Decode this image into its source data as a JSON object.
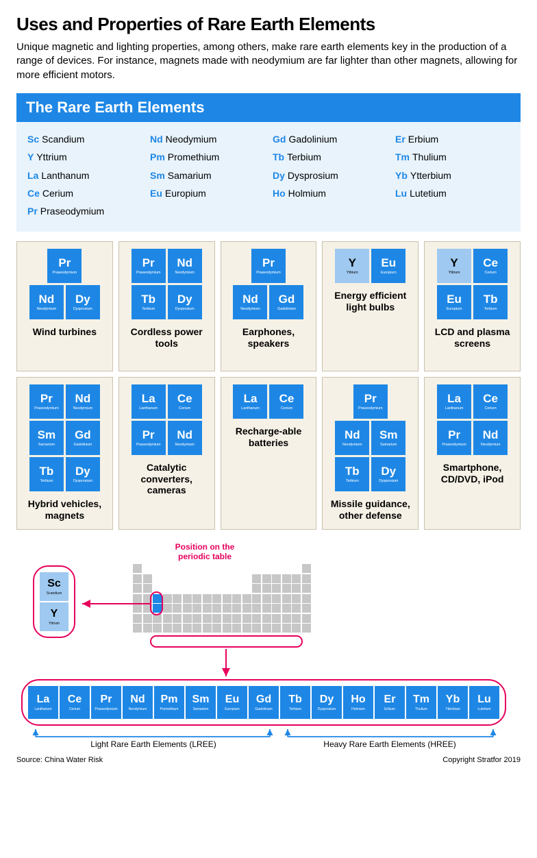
{
  "title": "Uses and Properties of Rare Earth Elements",
  "subtitle": "Unique magnetic and lighting properties, among others, make rare earth elements key in the production of a range of devices. For instance, magnets made with neodymium are far lighter than other magnets, allowing for more efficient motors.",
  "panel_header": "The Rare Earth Elements",
  "colors": {
    "primary": "#1e87e5",
    "light": "#9fc9f0",
    "card_bg": "#f6f1e6",
    "highlight": "#e6005c",
    "grid": "#c7c7c7"
  },
  "elements": [
    {
      "sym": "Sc",
      "name": "Scandium"
    },
    {
      "sym": "Y",
      "name": "Yttrium"
    },
    {
      "sym": "La",
      "name": "Lanthanum"
    },
    {
      "sym": "Ce",
      "name": "Cerium"
    },
    {
      "sym": "Pr",
      "name": "Praseodymium"
    },
    {
      "sym": "Nd",
      "name": "Neodymium"
    },
    {
      "sym": "Pm",
      "name": "Promethium"
    },
    {
      "sym": "Sm",
      "name": "Samarium"
    },
    {
      "sym": "Eu",
      "name": "Europium"
    },
    {
      "sym": "Gd",
      "name": "Gadolinium"
    },
    {
      "sym": "Tb",
      "name": "Terbium"
    },
    {
      "sym": "Dy",
      "name": "Dysprosium"
    },
    {
      "sym": "Ho",
      "name": "Holmium"
    },
    {
      "sym": "Er",
      "name": "Erbium"
    },
    {
      "sym": "Tm",
      "name": "Thulium"
    },
    {
      "sym": "Yb",
      "name": "Ytterbium"
    },
    {
      "sym": "Lu",
      "name": "Lutetium"
    }
  ],
  "list_layout": [
    [
      "Sc",
      "Nd",
      "Gd",
      "Er"
    ],
    [
      "Y",
      "Pm",
      "Tb",
      "Tm"
    ],
    [
      "La",
      "Sm",
      "Dy",
      "Yb"
    ],
    [
      "Ce",
      "Eu",
      "Ho",
      "Lu"
    ],
    [
      "Pr",
      "",
      "",
      ""
    ]
  ],
  "cards": [
    {
      "label": "Wind turbines",
      "cols": 2,
      "tiles": [
        {
          "sym": "Pr",
          "name": "Praseodymium",
          "c": "primary",
          "span": true
        },
        {
          "sym": "Nd",
          "name": "Neodymium",
          "c": "primary"
        },
        {
          "sym": "Dy",
          "name": "Dysprosium",
          "c": "primary"
        }
      ]
    },
    {
      "label": "Cordless power tools",
      "cols": 2,
      "tiles": [
        {
          "sym": "Pr",
          "name": "Praseodymium",
          "c": "primary"
        },
        {
          "sym": "Nd",
          "name": "Neodymium",
          "c": "primary"
        },
        {
          "sym": "Tb",
          "name": "Terbium",
          "c": "primary"
        },
        {
          "sym": "Dy",
          "name": "Dysprosium",
          "c": "primary"
        }
      ]
    },
    {
      "label": "Earphones, speakers",
      "cols": 2,
      "tiles": [
        {
          "sym": "Pr",
          "name": "Praseodymium",
          "c": "primary",
          "span": true
        },
        {
          "sym": "Nd",
          "name": "Neodymium",
          "c": "primary"
        },
        {
          "sym": "Gd",
          "name": "Gadolinium",
          "c": "primary"
        }
      ]
    },
    {
      "label": "Energy efficient light bulbs",
      "cols": 2,
      "tiles": [
        {
          "sym": "Y",
          "name": "Yttrium",
          "c": "light",
          "text": "#000"
        },
        {
          "sym": "Eu",
          "name": "Europium",
          "c": "primary"
        }
      ]
    },
    {
      "label": "LCD and plasma screens",
      "cols": 2,
      "tiles": [
        {
          "sym": "Y",
          "name": "Yttrium",
          "c": "light",
          "text": "#000"
        },
        {
          "sym": "Ce",
          "name": "Cerium",
          "c": "primary"
        },
        {
          "sym": "Eu",
          "name": "Europium",
          "c": "primary"
        },
        {
          "sym": "Tb",
          "name": "Terbium",
          "c": "primary"
        }
      ]
    },
    {
      "label": "Hybrid vehicles, magnets",
      "cols": 2,
      "tiles": [
        {
          "sym": "Pr",
          "name": "Praseodymium",
          "c": "primary"
        },
        {
          "sym": "Nd",
          "name": "Neodymium",
          "c": "primary"
        },
        {
          "sym": "Sm",
          "name": "Samarium",
          "c": "primary"
        },
        {
          "sym": "Gd",
          "name": "Gadolinium",
          "c": "primary"
        },
        {
          "sym": "Tb",
          "name": "Terbium",
          "c": "primary"
        },
        {
          "sym": "Dy",
          "name": "Dysprosium",
          "c": "primary"
        }
      ]
    },
    {
      "label": "Catalytic converters, cameras",
      "cols": 2,
      "tiles": [
        {
          "sym": "La",
          "name": "Lanthanum",
          "c": "primary"
        },
        {
          "sym": "Ce",
          "name": "Cerium",
          "c": "primary"
        },
        {
          "sym": "Pr",
          "name": "Praseodymium",
          "c": "primary"
        },
        {
          "sym": "Nd",
          "name": "Neodymium",
          "c": "primary"
        }
      ]
    },
    {
      "label": "Recharge-able batteries",
      "cols": 2,
      "tiles": [
        {
          "sym": "La",
          "name": "Lanthanum",
          "c": "primary"
        },
        {
          "sym": "Ce",
          "name": "Cerium",
          "c": "primary"
        }
      ]
    },
    {
      "label": "Missile guidance, other defense",
      "cols": 2,
      "tiles": [
        {
          "sym": "Pr",
          "name": "Praseodymium",
          "c": "primary",
          "span": true
        },
        {
          "sym": "Nd",
          "name": "Neodymium",
          "c": "primary"
        },
        {
          "sym": "Sm",
          "name": "Samarium",
          "c": "primary"
        },
        {
          "sym": "Tb",
          "name": "Terbium",
          "c": "primary"
        },
        {
          "sym": "Dy",
          "name": "Dysprosium",
          "c": "primary"
        }
      ]
    },
    {
      "label": "Smartphone, CD/DVD, iPod",
      "cols": 2,
      "tiles": [
        {
          "sym": "La",
          "name": "Lanthanum",
          "c": "primary"
        },
        {
          "sym": "Ce",
          "name": "Cerium",
          "c": "primary"
        },
        {
          "sym": "Pr",
          "name": "Praseodymium",
          "c": "primary"
        },
        {
          "sym": "Nd",
          "name": "Neodymium",
          "c": "primary"
        }
      ]
    }
  ],
  "ptable": {
    "label": "Position on the periodic table",
    "sc_tiles": [
      {
        "sym": "Sc",
        "name": "Scandium",
        "c": "light"
      },
      {
        "sym": "Y",
        "name": "Yttrium",
        "c": "light"
      }
    ],
    "lanthanides": [
      {
        "sym": "La",
        "name": "Lanthanum"
      },
      {
        "sym": "Ce",
        "name": "Cerium"
      },
      {
        "sym": "Pr",
        "name": "Praseodymium"
      },
      {
        "sym": "Nd",
        "name": "Neodymium"
      },
      {
        "sym": "Pm",
        "name": "Promethium"
      },
      {
        "sym": "Sm",
        "name": "Samarium"
      },
      {
        "sym": "Eu",
        "name": "Europium"
      },
      {
        "sym": "Gd",
        "name": "Gadolinium"
      },
      {
        "sym": "Tb",
        "name": "Terbium"
      },
      {
        "sym": "Dy",
        "name": "Dysprosium"
      },
      {
        "sym": "Ho",
        "name": "Holmium"
      },
      {
        "sym": "Er",
        "name": "Erbium"
      },
      {
        "sym": "Tm",
        "name": "Thulium"
      },
      {
        "sym": "Yb",
        "name": "Ytterbium"
      },
      {
        "sym": "Lu",
        "name": "Lutetium"
      }
    ],
    "lree_label": "Light Rare Earth Elements (LREE)",
    "hree_label": "Heavy Rare Earth Elements (HREE)",
    "lree_end_index": 7,
    "main_grid": [
      [
        1,
        0,
        0,
        0,
        0,
        0,
        0,
        0,
        0,
        0,
        0,
        0,
        0,
        0,
        0,
        0,
        0,
        1
      ],
      [
        1,
        1,
        0,
        0,
        0,
        0,
        0,
        0,
        0,
        0,
        0,
        0,
        1,
        1,
        1,
        1,
        1,
        1
      ],
      [
        1,
        1,
        0,
        0,
        0,
        0,
        0,
        0,
        0,
        0,
        0,
        0,
        1,
        1,
        1,
        1,
        1,
        1
      ],
      [
        1,
        1,
        2,
        1,
        1,
        1,
        1,
        1,
        1,
        1,
        1,
        1,
        1,
        1,
        1,
        1,
        1,
        1
      ],
      [
        1,
        1,
        2,
        1,
        1,
        1,
        1,
        1,
        1,
        1,
        1,
        1,
        1,
        1,
        1,
        1,
        1,
        1
      ],
      [
        1,
        1,
        1,
        1,
        1,
        1,
        1,
        1,
        1,
        1,
        1,
        1,
        1,
        1,
        1,
        1,
        1,
        1
      ],
      [
        1,
        1,
        1,
        1,
        1,
        1,
        1,
        1,
        1,
        1,
        1,
        1,
        1,
        1,
        1,
        1,
        1,
        1
      ]
    ]
  },
  "footer": {
    "source": "Source: China Water Risk",
    "copyright": "Copyright Stratfor 2019"
  }
}
